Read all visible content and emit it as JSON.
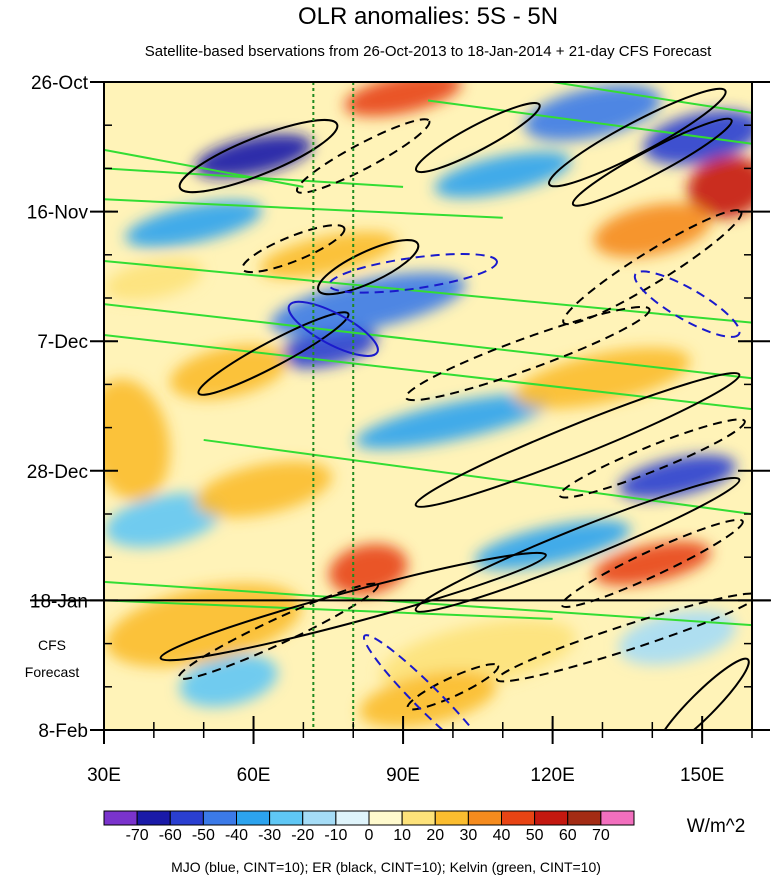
{
  "chart_data": {
    "type": "heatmap",
    "title": "OLR anomalies: 5S - 5N",
    "subtitle": "Satellite-based bservations from 26-Oct-2013 to 18-Jan-2014 + 21-day CFS Forecast",
    "x_axis": {
      "range": [
        30,
        160
      ],
      "ticks": [
        30,
        60,
        90,
        120,
        150
      ],
      "tick_labels": [
        "30E",
        "60E",
        "90E",
        "120E",
        "150E"
      ],
      "minor_step": 10
    },
    "y_axis": {
      "range_days": [
        0,
        105
      ],
      "tick_days": [
        0,
        21,
        42,
        63,
        84,
        105
      ],
      "tick_labels": [
        "26-Oct",
        "16-Nov",
        "7-Dec",
        "28-Dec",
        "18-Jan",
        "8-Feb"
      ],
      "minor_step_days": 7,
      "reversed": true
    },
    "forecast_start_day": 84,
    "forecast_label": [
      "CFS",
      "Forecast"
    ],
    "reference_lines_lon": [
      72,
      80
    ],
    "colorbar": {
      "unit": "W/m^2",
      "labels": [
        "-70",
        "-60",
        "-50",
        "-40",
        "-30",
        "-20",
        "-10",
        "0",
        "10",
        "20",
        "30",
        "40",
        "50",
        "60",
        "70"
      ],
      "colors": [
        "#7a33cc",
        "#1a1aa8",
        "#2a3fd1",
        "#3b7ae8",
        "#2ca3ee",
        "#5fc7f5",
        "#a5dcf6",
        "#dff4fb",
        "#fffacd",
        "#fde27a",
        "#fbbd2f",
        "#f58b1e",
        "#e84414",
        "#c41810",
        "#a32b14",
        "#f26fbe"
      ]
    },
    "anomaly_blobs": [
      {
        "lon": 60,
        "day": 12,
        "value": -65,
        "rx": 12,
        "ry": 3
      },
      {
        "lon": 75,
        "day": 43,
        "value": -60,
        "rx": 10,
        "ry": 3
      },
      {
        "lon": 83,
        "day": 36,
        "value": -50,
        "rx": 20,
        "ry": 4
      },
      {
        "lon": 48,
        "day": 23,
        "value": -40,
        "rx": 14,
        "ry": 3
      },
      {
        "lon": 128,
        "day": 5,
        "value": -50,
        "rx": 14,
        "ry": 4
      },
      {
        "lon": 150,
        "day": 9,
        "value": -60,
        "rx": 12,
        "ry": 4
      },
      {
        "lon": 110,
        "day": 15,
        "value": -40,
        "rx": 14,
        "ry": 3
      },
      {
        "lon": 145,
        "day": 64,
        "value": -60,
        "rx": 12,
        "ry": 3
      },
      {
        "lon": 100,
        "day": 55,
        "value": -40,
        "rx": 20,
        "ry": 3
      },
      {
        "lon": 42,
        "day": 71,
        "value": -30,
        "rx": 12,
        "ry": 4
      },
      {
        "lon": 120,
        "day": 75,
        "value": -40,
        "rx": 16,
        "ry": 3
      },
      {
        "lon": 55,
        "day": 97,
        "value": -30,
        "rx": 10,
        "ry": 4
      },
      {
        "lon": 145,
        "day": 90,
        "value": -20,
        "rx": 12,
        "ry": 4
      },
      {
        "lon": 90,
        "day": 2,
        "value": 40,
        "rx": 12,
        "ry": 3
      },
      {
        "lon": 155,
        "day": 17,
        "value": 50,
        "rx": 8,
        "ry": 5
      },
      {
        "lon": 140,
        "day": 24,
        "value": 30,
        "rx": 12,
        "ry": 4
      },
      {
        "lon": 75,
        "day": 28,
        "value": 20,
        "rx": 14,
        "ry": 3
      },
      {
        "lon": 130,
        "day": 48,
        "value": 20,
        "rx": 18,
        "ry": 4
      },
      {
        "lon": 55,
        "day": 47,
        "value": 20,
        "rx": 12,
        "ry": 4
      },
      {
        "lon": 35,
        "day": 58,
        "value": 20,
        "rx": 8,
        "ry": 10
      },
      {
        "lon": 62,
        "day": 66,
        "value": 20,
        "rx": 14,
        "ry": 4
      },
      {
        "lon": 83,
        "day": 79,
        "value": 40,
        "rx": 8,
        "ry": 4
      },
      {
        "lon": 140,
        "day": 78,
        "value": 40,
        "rx": 12,
        "ry": 3
      },
      {
        "lon": 50,
        "day": 88,
        "value": 20,
        "rx": 20,
        "ry": 6
      },
      {
        "lon": 105,
        "day": 93,
        "value": 10,
        "rx": 20,
        "ry": 5
      },
      {
        "lon": 95,
        "day": 100,
        "value": 20,
        "rx": 14,
        "ry": 4
      },
      {
        "lon": 40,
        "day": 32,
        "value": 10,
        "rx": 10,
        "ry": 3
      }
    ],
    "mjo_contours": [
      {
        "lon": 92,
        "day": 31,
        "lon_span": 34,
        "day_span": 5,
        "tilt": -8,
        "dashed": true
      },
      {
        "lon": 76,
        "day": 40,
        "lon_span": 20,
        "day_span": 5,
        "tilt": 28,
        "dashed": false
      },
      {
        "lon": 147,
        "day": 36,
        "lon_span": 24,
        "day_span": 5,
        "tilt": 30,
        "dashed": true
      },
      {
        "lon": 95,
        "day": 100,
        "lon_span": 36,
        "day_span": 4,
        "tilt": 45,
        "dashed": true
      }
    ],
    "er_contours": [
      {
        "lon": 61,
        "day": 12,
        "lon_span": 34,
        "day_span": 6,
        "tilt": -22,
        "dashed": false
      },
      {
        "lon": 82,
        "day": 12,
        "lon_span": 30,
        "day_span": 4,
        "tilt": -28,
        "dashed": true
      },
      {
        "lon": 105,
        "day": 9,
        "lon_span": 28,
        "day_span": 4,
        "tilt": -28,
        "dashed": false
      },
      {
        "lon": 137,
        "day": 9,
        "lon_span": 40,
        "day_span": 5,
        "tilt": -28,
        "dashed": false
      },
      {
        "lon": 140,
        "day": 13,
        "lon_span": 36,
        "day_span": 4,
        "tilt": -28,
        "dashed": false
      },
      {
        "lon": 140,
        "day": 30,
        "lon_span": 42,
        "day_span": 5,
        "tilt": -32,
        "dashed": true
      },
      {
        "lon": 68,
        "day": 27,
        "lon_span": 22,
        "day_span": 4,
        "tilt": -22,
        "dashed": true
      },
      {
        "lon": 83,
        "day": 30,
        "lon_span": 22,
        "day_span": 5,
        "tilt": -25,
        "dashed": false
      },
      {
        "lon": 64,
        "day": 44,
        "lon_span": 34,
        "day_span": 4,
        "tilt": -28,
        "dashed": false
      },
      {
        "lon": 115,
        "day": 44,
        "lon_span": 52,
        "day_span": 5,
        "tilt": -20,
        "dashed": true
      },
      {
        "lon": 125,
        "day": 58,
        "lon_span": 70,
        "day_span": 5,
        "tilt": -22,
        "dashed": false
      },
      {
        "lon": 140,
        "day": 61,
        "lon_span": 40,
        "day_span": 4,
        "tilt": -22,
        "dashed": true
      },
      {
        "lon": 125,
        "day": 75,
        "lon_span": 70,
        "day_span": 5,
        "tilt": -22,
        "dashed": false
      },
      {
        "lon": 140,
        "day": 78,
        "lon_span": 40,
        "day_span": 4,
        "tilt": -25,
        "dashed": true
      },
      {
        "lon": 65,
        "day": 89,
        "lon_span": 44,
        "day_span": 4,
        "tilt": -25,
        "dashed": true
      },
      {
        "lon": 80,
        "day": 85,
        "lon_span": 80,
        "day_span": 5,
        "tilt": -15,
        "dashed": false
      },
      {
        "lon": 135,
        "day": 90,
        "lon_span": 55,
        "day_span": 4,
        "tilt": -18,
        "dashed": true
      },
      {
        "lon": 150,
        "day": 101,
        "lon_span": 26,
        "day_span": 4,
        "tilt": -45,
        "dashed": false
      },
      {
        "lon": 100,
        "day": 98,
        "lon_span": 20,
        "day_span": 3,
        "tilt": -25,
        "dashed": true
      }
    ],
    "kelvin_lines": [
      {
        "from": [
          30,
          11
        ],
        "to": [
          70,
          17
        ]
      },
      {
        "from": [
          30,
          14
        ],
        "to": [
          90,
          17
        ]
      },
      {
        "from": [
          30,
          19
        ],
        "to": [
          110,
          22
        ]
      },
      {
        "from": [
          30,
          29
        ],
        "to": [
          160,
          39
        ]
      },
      {
        "from": [
          30,
          36
        ],
        "to": [
          160,
          48
        ]
      },
      {
        "from": [
          30,
          41
        ],
        "to": [
          160,
          53
        ]
      },
      {
        "from": [
          50,
          58
        ],
        "to": [
          160,
          70
        ]
      },
      {
        "from": [
          30,
          81
        ],
        "to": [
          160,
          88
        ]
      },
      {
        "from": [
          95,
          3
        ],
        "to": [
          160,
          10
        ]
      },
      {
        "from": [
          30,
          84
        ],
        "to": [
          120,
          87
        ]
      },
      {
        "from": [
          120,
          0
        ],
        "to": [
          160,
          5
        ]
      }
    ],
    "legend_text": "MJO (blue, CINT=10); ER (black, CINT=10); Kelvin (green, CINT=10)"
  }
}
